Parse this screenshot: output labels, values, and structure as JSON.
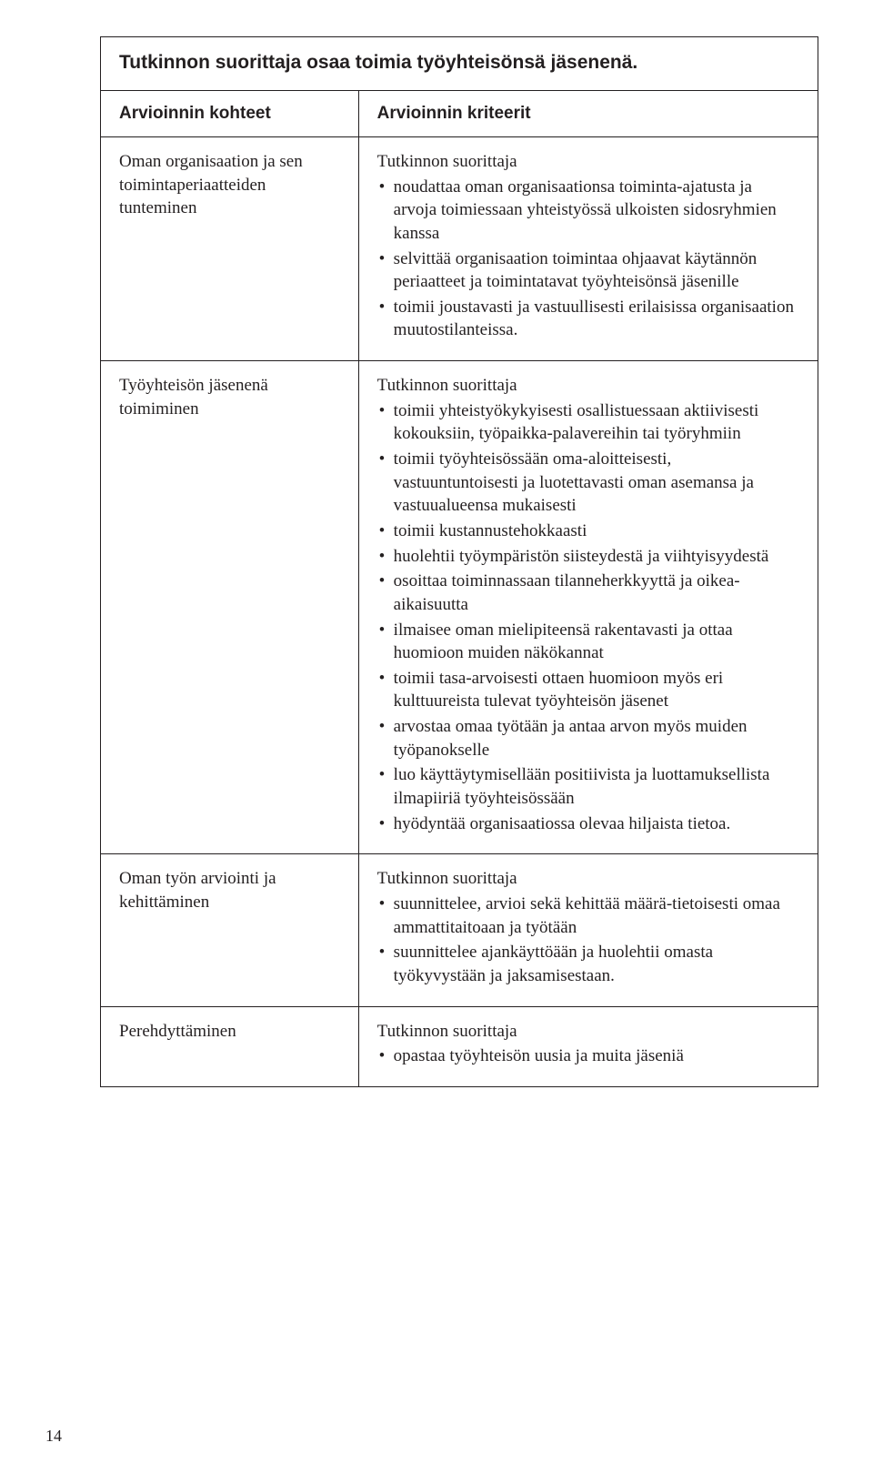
{
  "title": "Tutkinnon suorittaja osaa toimia työyhteisönsä jäsenenä.",
  "header_left": "Arvioinnin kohteet",
  "header_right": "Arvioinnin kriteerit",
  "rows": [
    {
      "left": "Oman organisaation ja sen toimintaperiaatteiden tunteminen",
      "lead": "Tutkinnon suorittaja",
      "bullets": [
        "noudattaa oman organisaationsa toiminta-ajatusta ja arvoja toimiessaan yhteistyössä ulkoisten sidosryhmien kanssa",
        "selvittää organisaation toimintaa ohjaavat käytännön periaatteet ja toimintatavat työyhteisönsä jäsenille",
        "toimii joustavasti ja vastuullisesti erilaisissa organisaation muutostilanteissa."
      ]
    },
    {
      "left": "Työyhteisön jäsenenä toimiminen",
      "lead": "Tutkinnon suorittaja",
      "bullets": [
        "toimii yhteistyökykyisesti osallistuessaan aktiivisesti kokouksiin, työpaikka-palavereihin tai työryhmiin",
        "toimii työyhteisössään oma-aloitteisesti, vastuuntuntoisesti ja luotettavasti oman asemansa ja vastuualueensa mukaisesti",
        "toimii kustannustehokkaasti",
        "huolehtii työympäristön siisteydestä ja viihtyisyydestä",
        "osoittaa toiminnassaan tilanneherkkyyttä ja oikea-aikaisuutta",
        "ilmaisee oman mielipiteensä rakentavasti ja ottaa huomioon muiden näkökannat",
        "toimii tasa-arvoisesti ottaen huomioon myös eri kulttuureista tulevat työyhteisön jäsenet",
        "arvostaa omaa työtään ja antaa arvon myös muiden työpanokselle",
        "luo käyttäytymisellään positiivista ja luottamuksellista ilmapiiriä työyhteisössään",
        "hyödyntää organisaatiossa olevaa hiljaista tietoa."
      ]
    },
    {
      "left": "Oman työn arviointi ja kehittäminen",
      "lead": "Tutkinnon suorittaja",
      "bullets": [
        "suunnittelee, arvioi sekä kehittää määrä-tietoisesti omaa ammattitaitoaan ja työtään",
        "suunnittelee ajankäyttöään ja huolehtii omasta työkyvystään ja jaksamisestaan."
      ]
    },
    {
      "left": "Perehdyttäminen",
      "lead": "Tutkinnon suorittaja",
      "bullets": [
        "opastaa työyhteisön uusia ja muita jäseniä"
      ]
    }
  ],
  "page_number": "14"
}
